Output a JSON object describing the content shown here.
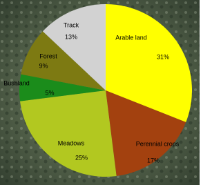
{
  "chart_data": {
    "type": "pie",
    "categories": [
      "Arable land",
      "Perennial crops",
      "Meadows",
      "Bushland",
      "Forest",
      "Track"
    ],
    "values": [
      31,
      17,
      25,
      5,
      9,
      13
    ],
    "value_labels": [
      "31%",
      "17%",
      "25%",
      "5%",
      "9%",
      "13%"
    ],
    "colors": [
      "#ffff00",
      "#a3410f",
      "#b2c820",
      "#1b8c1b",
      "#7d7a12",
      "#d2d2d2"
    ]
  }
}
